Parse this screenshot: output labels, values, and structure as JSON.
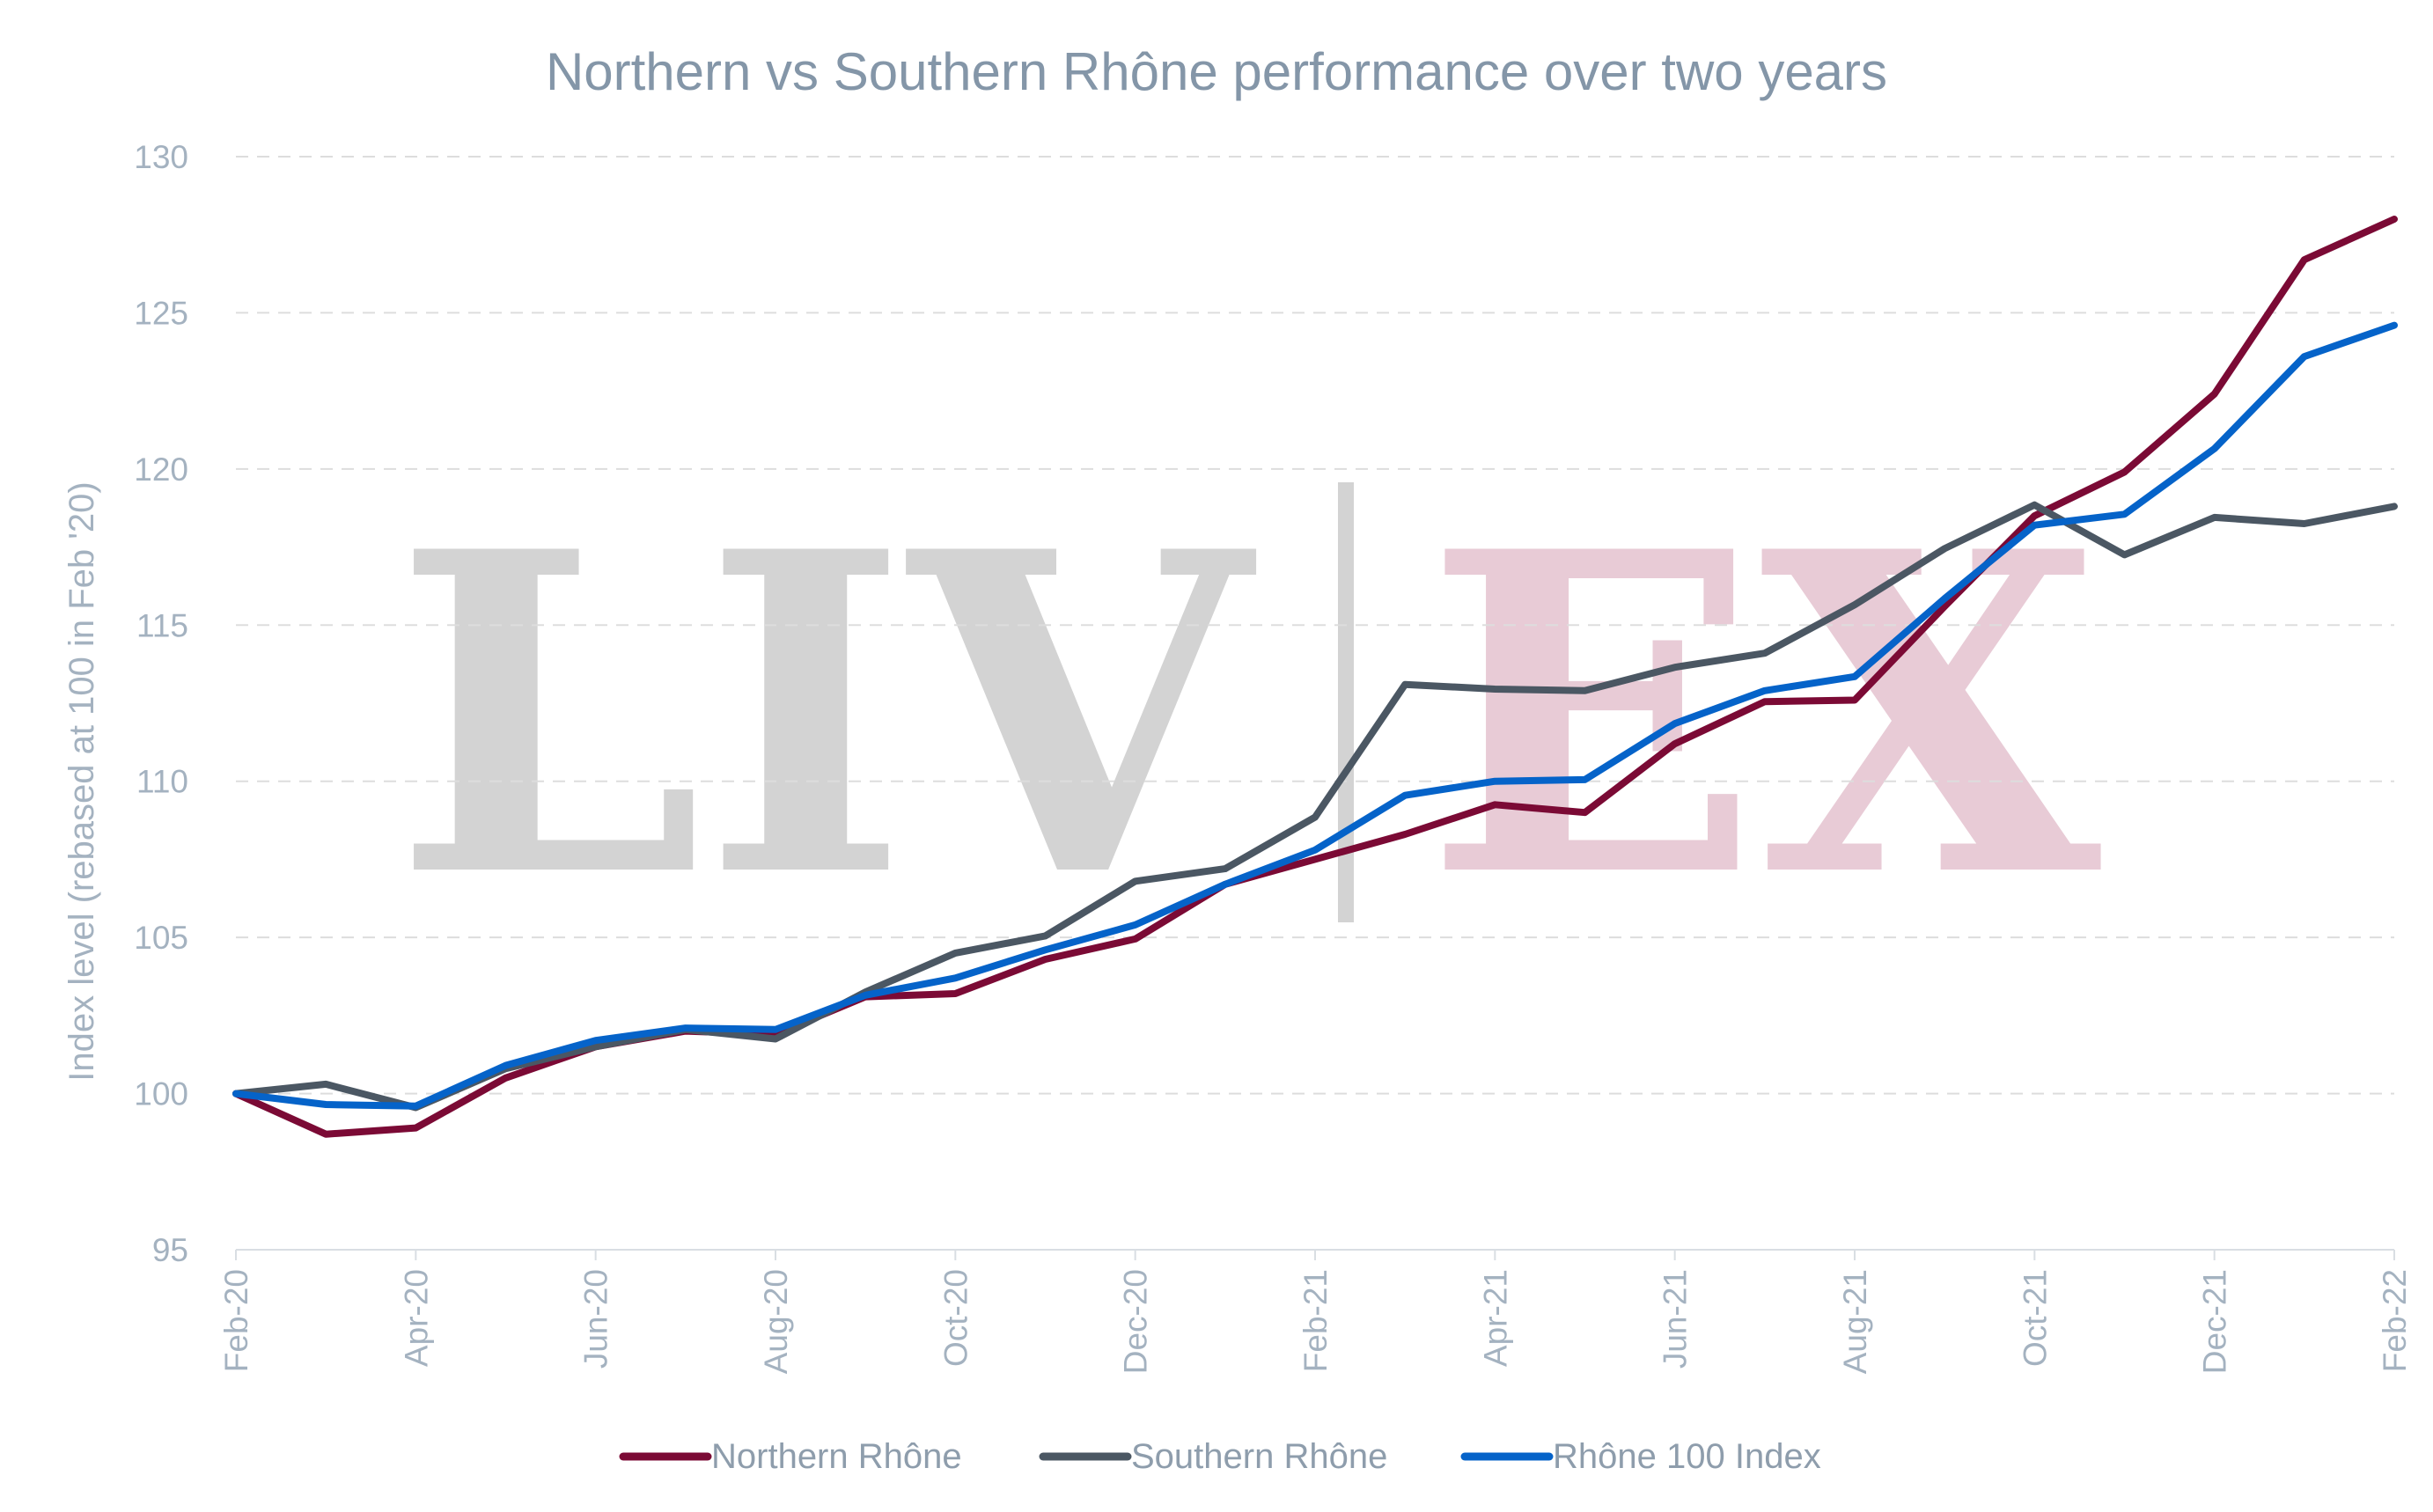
{
  "chart_data": {
    "type": "line",
    "title": "Northern vs Southern Rhône performance over two years",
    "xlabel": "",
    "ylabel": "Index level (rebased at 100 in Feb '20)",
    "x": [
      "Feb-20",
      "Mar-20",
      "Apr-20",
      "May-20",
      "Jun-20",
      "Jul-20",
      "Aug-20",
      "Sep-20",
      "Oct-20",
      "Nov-20",
      "Dec-20",
      "Jan-21",
      "Feb-21",
      "Mar-21",
      "Apr-21",
      "May-21",
      "Jun-21",
      "Jul-21",
      "Aug-21",
      "Sep-21",
      "Oct-21",
      "Nov-21",
      "Dec-21",
      "Jan-22",
      "Feb-22"
    ],
    "x_tick_labels": [
      "Feb-20",
      "Apr-20",
      "Jun-20",
      "Aug-20",
      "Oct-20",
      "Dec-20",
      "Feb-21",
      "Apr-21",
      "Jun-21",
      "Aug-21",
      "Oct-21",
      "Dec-21",
      "Feb-22"
    ],
    "ylim": [
      95,
      130
    ],
    "y_ticks": [
      95,
      100,
      105,
      110,
      115,
      120,
      125,
      130
    ],
    "grid": "horizontal dashed",
    "legend_position": "bottom",
    "watermark": {
      "left": "LIV",
      "right": "EX",
      "left_color": "#D3D3D3",
      "right_color": "#E8CBD6",
      "divider_color": "#D3D3D3"
    },
    "series": [
      {
        "name": "Northern Rhône",
        "color": "#7B0A35",
        "values": [
          100.0,
          98.7,
          98.9,
          100.5,
          101.5,
          102.0,
          101.9,
          103.1,
          103.2,
          104.3,
          104.95,
          106.7,
          107.5,
          108.3,
          109.25,
          109.0,
          111.2,
          112.55,
          112.6,
          115.6,
          118.5,
          119.9,
          122.4,
          126.7,
          128.0
        ]
      },
      {
        "name": "Southern Rhône",
        "color": "#4B5763",
        "values": [
          100.0,
          100.3,
          99.55,
          100.8,
          101.5,
          102.05,
          101.75,
          103.25,
          104.5,
          105.05,
          106.8,
          107.2,
          108.85,
          113.1,
          112.95,
          112.9,
          113.65,
          114.1,
          115.65,
          117.45,
          118.85,
          117.25,
          118.45,
          118.25,
          118.8
        ]
      },
      {
        "name": "Rhône 100 Index",
        "color": "#0563C9",
        "values": [
          100.0,
          99.65,
          99.6,
          100.9,
          101.7,
          102.1,
          102.05,
          103.15,
          103.7,
          104.6,
          105.4,
          106.7,
          107.8,
          109.55,
          110.0,
          110.05,
          111.85,
          112.9,
          113.35,
          115.85,
          118.2,
          118.55,
          120.65,
          123.6,
          124.6
        ]
      }
    ]
  }
}
